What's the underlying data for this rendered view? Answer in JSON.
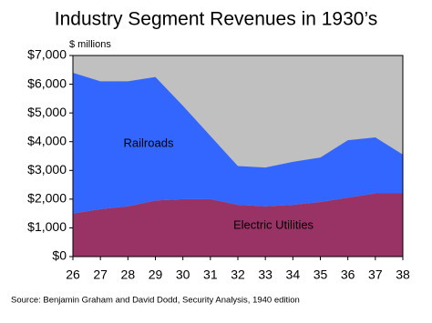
{
  "chart_data": {
    "type": "stacked-area",
    "title": "Industry Segment Revenues in 1930’s",
    "unit_label": "$ millions",
    "source": "Source: Benjamin Graham and David Dodd,  Security Analysis, 1940 edition",
    "categories": [
      "26",
      "27",
      "28",
      "29",
      "30",
      "31",
      "32",
      "33",
      "34",
      "35",
      "36",
      "37",
      "38"
    ],
    "series": [
      {
        "name": "Electric Utilities",
        "color": "#993366",
        "values": [
          1500,
          1650,
          1750,
          1950,
          2000,
          2000,
          1800,
          1750,
          1800,
          1900,
          2050,
          2200,
          2200
        ]
      },
      {
        "name": "Railroads",
        "color": "#3366ff",
        "values": [
          4900,
          4450,
          4350,
          4300,
          3250,
          2200,
          1350,
          1350,
          1500,
          1550,
          2000,
          1950,
          1350
        ]
      }
    ],
    "ylim": [
      0,
      7000
    ],
    "yticks": [
      {
        "value": 0,
        "label": "$0"
      },
      {
        "value": 1000,
        "label": "$1,000"
      },
      {
        "value": 2000,
        "label": "$2,000"
      },
      {
        "value": 3000,
        "label": "$3,000"
      },
      {
        "value": 4000,
        "label": "$4,000"
      },
      {
        "value": 5000,
        "label": "$5,000"
      },
      {
        "value": 6000,
        "label": "$6,000"
      },
      {
        "value": 7000,
        "label": "$7,000"
      }
    ],
    "plot_background": "#c0c0c0"
  }
}
